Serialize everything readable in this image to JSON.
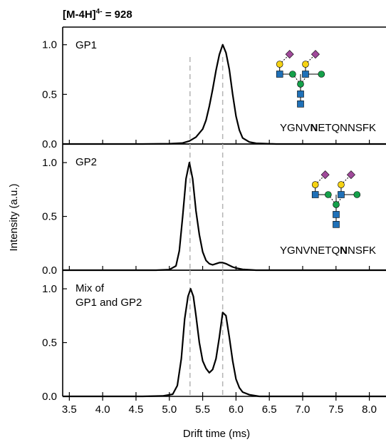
{
  "figure": {
    "title_main": "[M-4H]",
    "title_sup": "4-",
    "title_tail": " = 928"
  },
  "colors": {
    "line": "#000000",
    "reference_dash": "#b4b4b4",
    "galactose_yellow": "#f5d213",
    "glcnac_blue": "#1f70b7",
    "mannose_green": "#15a04a",
    "sialic_purple": "#a04a9a"
  },
  "chart_data": {
    "type": "line",
    "xlabel": "Drift time (ms)",
    "ylabel": "Intensity (a.u.)",
    "xlim": [
      3.4,
      8.25
    ],
    "ylim": [
      0,
      1.12
    ],
    "xticks": [
      3.5,
      4.0,
      4.5,
      5.0,
      5.5,
      6.0,
      6.5,
      7.0,
      7.5,
      8.0
    ],
    "xtick_labels": [
      "3.5",
      "4.0",
      "4.5",
      "5.0",
      "5.5",
      "6.0",
      "6.5",
      "7.0",
      "7.5",
      "8.0"
    ],
    "yticks": [
      0,
      0.5,
      1.0
    ],
    "ytick_labels": [
      "0.0",
      "0.5",
      "1.0"
    ],
    "reference_lines_x": [
      5.31,
      5.8
    ],
    "grid": false,
    "panels": [
      {
        "label": "GP1",
        "sequence": {
          "before": "YGNV",
          "bold": "N",
          "after": "ETQNNSFK"
        },
        "x": [
          3.4,
          4.6,
          5.0,
          5.2,
          5.3,
          5.4,
          5.5,
          5.55,
          5.6,
          5.65,
          5.7,
          5.75,
          5.8,
          5.85,
          5.9,
          5.95,
          6.0,
          6.05,
          6.1,
          6.2,
          6.3,
          6.6,
          8.25
        ],
        "y": [
          0,
          0,
          0.003,
          0.01,
          0.03,
          0.07,
          0.15,
          0.24,
          0.38,
          0.55,
          0.74,
          0.9,
          1.0,
          0.92,
          0.75,
          0.5,
          0.28,
          0.14,
          0.06,
          0.02,
          0.007,
          0,
          0
        ]
      },
      {
        "label": "GP2",
        "sequence": {
          "before": "YGNVNETQ",
          "bold": "N",
          "after": "NSFK"
        },
        "x": [
          3.4,
          4.8,
          5.0,
          5.1,
          5.15,
          5.2,
          5.25,
          5.3,
          5.35,
          5.4,
          5.45,
          5.5,
          5.55,
          5.6,
          5.65,
          5.7,
          5.75,
          5.8,
          5.85,
          5.9,
          5.95,
          6.0,
          6.1,
          6.3,
          8.25
        ],
        "y": [
          0,
          0,
          0.005,
          0.04,
          0.18,
          0.5,
          0.85,
          1.0,
          0.85,
          0.55,
          0.33,
          0.17,
          0.09,
          0.06,
          0.05,
          0.06,
          0.07,
          0.07,
          0.06,
          0.045,
          0.03,
          0.02,
          0.008,
          0,
          0
        ]
      },
      {
        "label": "Mix of\nGP1 and GP2",
        "label_lines": [
          "Mix of",
          "GP1 and GP2"
        ],
        "sequence": null,
        "x": [
          3.4,
          4.6,
          4.9,
          5.05,
          5.12,
          5.18,
          5.23,
          5.28,
          5.32,
          5.36,
          5.4,
          5.45,
          5.5,
          5.55,
          5.6,
          5.65,
          5.7,
          5.75,
          5.8,
          5.85,
          5.9,
          5.95,
          6.0,
          6.05,
          6.1,
          6.2,
          6.35,
          8.25
        ],
        "y": [
          0,
          0,
          0.004,
          0.02,
          0.1,
          0.35,
          0.72,
          0.93,
          1.0,
          0.93,
          0.75,
          0.5,
          0.33,
          0.26,
          0.22,
          0.25,
          0.35,
          0.55,
          0.78,
          0.75,
          0.55,
          0.33,
          0.16,
          0.08,
          0.04,
          0.015,
          0,
          0
        ]
      }
    ]
  }
}
